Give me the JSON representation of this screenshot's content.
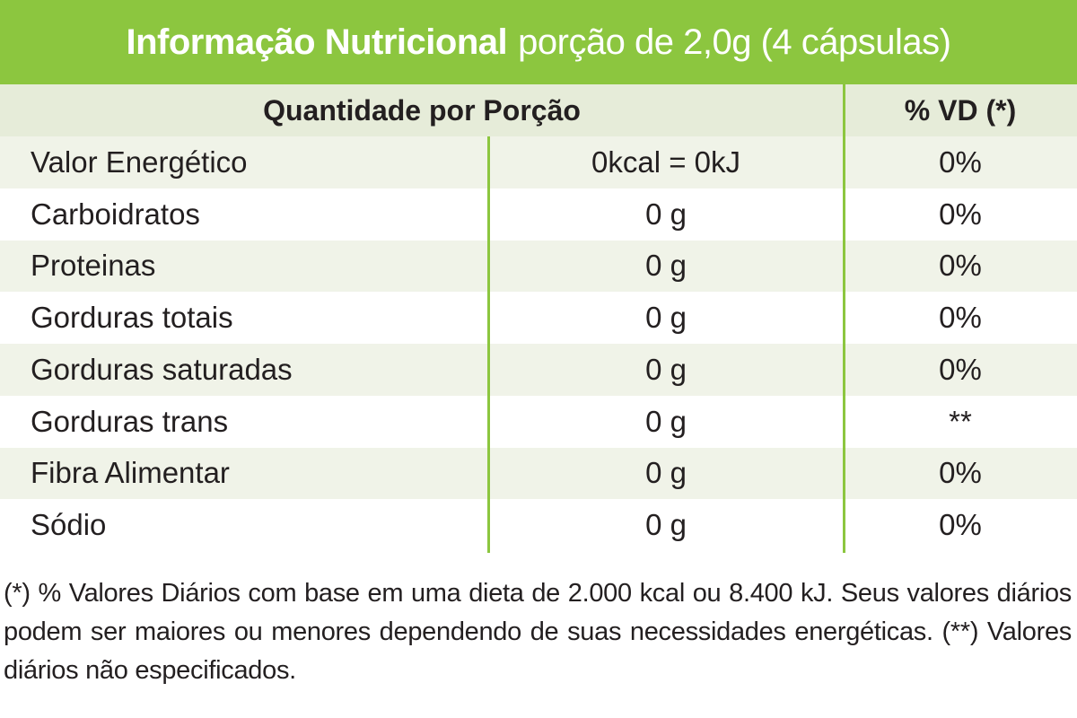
{
  "title": {
    "bold": "Informação Nutricional",
    "rest": "porção de 2,0g (4 cápsulas)"
  },
  "header": {
    "quantity": "Quantidade por Porção",
    "vd": "% VD (*)"
  },
  "rows": [
    {
      "name": "Valor Energético",
      "amount": "0kcal = 0kJ",
      "vd": "0%"
    },
    {
      "name": "Carboidratos",
      "amount": "0 g",
      "vd": "0%"
    },
    {
      "name": "Proteinas",
      "amount": "0 g",
      "vd": "0%"
    },
    {
      "name": "Gorduras totais",
      "amount": "0 g",
      "vd": "0%"
    },
    {
      "name": "Gorduras saturadas",
      "amount": "0 g",
      "vd": "0%"
    },
    {
      "name": "Gorduras trans",
      "amount": "0 g",
      "vd": "**"
    },
    {
      "name": "Fibra Alimentar",
      "amount": "0 g",
      "vd": "0%"
    },
    {
      "name": "Sódio",
      "amount": "0 g",
      "vd": "0%"
    }
  ],
  "footnote": "(*) % Valores Diários com base em uma dieta de 2.000 kcal ou 8.400 kJ. Seus valores diários podem ser maiores ou menores dependendo de suas necessidades energéticas. (**) Valores diários não especificados.",
  "colors": {
    "accent_green": "#8cc63f",
    "row_shade": "#f0f3e8",
    "text": "#231f20"
  }
}
